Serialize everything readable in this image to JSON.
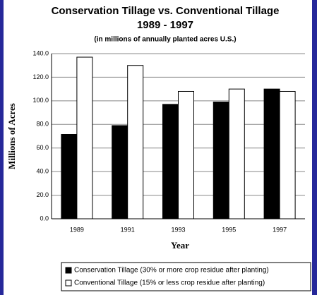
{
  "chart_data": {
    "type": "bar",
    "title": "Conservation Tillage vs. Conventional Tillage",
    "subtitle_year": "1989 - 1997",
    "subtitle": "(in millions of annually planted acres U.S.)",
    "y_label": "Millions of Acres",
    "x_label": "Year",
    "categories": [
      "1989",
      "1991",
      "1993",
      "1995",
      "1997"
    ],
    "series": [
      {
        "name": "Conservation Tillage (30% or more crop residue after planting)",
        "color": "#000000",
        "values": [
          71.5,
          79,
          97,
          99,
          110
        ]
      },
      {
        "name": "Conventional Tillage (15% or less crop residue after planting)",
        "color": "#ffffff",
        "values": [
          137,
          130,
          108,
          110,
          108
        ]
      }
    ],
    "ylim": [
      0,
      140
    ],
    "yticks": [
      {
        "value": 0,
        "label": "0.0"
      },
      {
        "value": 20,
        "label": "20.0"
      },
      {
        "value": 40,
        "label": "40.0"
      },
      {
        "value": 60,
        "label": "60.0"
      },
      {
        "value": 80,
        "label": "80.0"
      },
      {
        "value": 100,
        "label": "100.0"
      },
      {
        "value": 120,
        "label": "120.0"
      },
      {
        "value": 140,
        "label": "140.0"
      }
    ],
    "grid": true
  }
}
